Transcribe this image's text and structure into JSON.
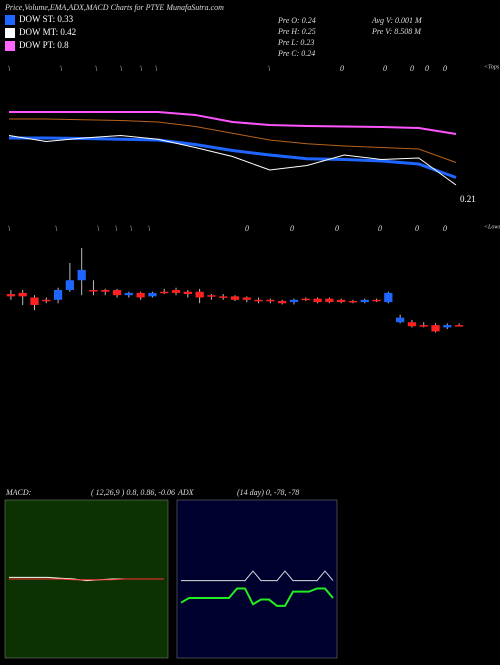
{
  "header": {
    "title": "Price,Volume,EMA,ADX,MACD Charts for PTYE MunafaSutra.com"
  },
  "legend": [
    {
      "label": "DOW ST: 0.33",
      "color": "#1e66ff"
    },
    {
      "label": "DOW MT: 0.42",
      "color": "#ffffff"
    },
    {
      "label": "DOW PT: 0.8",
      "color": "#ff66ff"
    }
  ],
  "info": {
    "col1": [
      "Pre O: 0.24",
      "Pre H: 0.25",
      "Pre L: 0.23",
      "Pre C: 0.24"
    ],
    "col2": [
      "Avg V: 0.001 M",
      "Pre V: 8.508 M"
    ]
  },
  "markers": {
    "tops": [
      "\\",
      "\\",
      "\\",
      "\\",
      "\\",
      "\\",
      "\\",
      "0",
      "0",
      "0",
      "0",
      "0"
    ],
    "tops_label": "<Tops",
    "lows": [
      "\\",
      "\\",
      "\\",
      "\\",
      "\\",
      "\\",
      "0",
      "0",
      "0",
      "0",
      "0",
      "0"
    ],
    "lows_label": "<Lows"
  },
  "chart_data": [
    {
      "type": "line",
      "categories": [
        null,
        null,
        null,
        null,
        null,
        null,
        null,
        null,
        null,
        null,
        null,
        null,
        null
      ],
      "ylim": [
        0.2,
        0.3
      ],
      "yticks": [
        0.21
      ],
      "series": [
        {
          "name": "PT",
          "color": "#ff55ff",
          "width": 2,
          "values": [
            0.2687,
            0.2687,
            0.2687,
            0.2687,
            0.2687,
            0.2667,
            0.262,
            0.26,
            0.2593,
            0.259,
            0.2587,
            0.258,
            0.254
          ]
        },
        {
          "name": "MT",
          "color": "#b8621b",
          "width": 1,
          "values": [
            0.264,
            0.264,
            0.2635,
            0.263,
            0.262,
            0.259,
            0.2545,
            0.25,
            0.2475,
            0.246,
            0.245,
            0.244,
            0.235
          ]
        },
        {
          "name": "ST",
          "color": "#1e66ff",
          "width": 3,
          "values": [
            0.2513,
            0.2513,
            0.251,
            0.2505,
            0.25,
            0.247,
            0.243,
            0.24,
            0.2375,
            0.237,
            0.236,
            0.234,
            0.225
          ]
        },
        {
          "name": "Price",
          "color": "#ffffff",
          "width": 1,
          "values": [
            0.253,
            0.249,
            0.2513,
            0.253,
            0.2505,
            0.245,
            0.239,
            0.23,
            0.233,
            0.24,
            0.237,
            0.238,
            0.22
          ]
        }
      ]
    },
    {
      "type": "candlestick",
      "categories": [
        null,
        null,
        null,
        null,
        null,
        null,
        null,
        null,
        null,
        null,
        null,
        null,
        null,
        null,
        null,
        null,
        null,
        null,
        null,
        null,
        null,
        null,
        null,
        null,
        null,
        null,
        null,
        null,
        null,
        null,
        null,
        null,
        null,
        null,
        null,
        null,
        null,
        null,
        null
      ],
      "ylim": [
        0.22,
        0.26
      ],
      "up_color": "#1e66ff",
      "down_color": "#ff2020",
      "open": [
        0.2506,
        0.2508,
        0.25,
        0.2496,
        0.2496,
        0.2513,
        0.253,
        0.2513,
        0.2513,
        0.2513,
        0.2504,
        0.2508,
        0.2502,
        0.251,
        0.2513,
        0.251,
        0.251,
        0.2504,
        0.2502,
        0.2502,
        0.25,
        0.2496,
        0.2496,
        0.2494,
        0.2492,
        0.2498,
        0.2498,
        0.2498,
        0.2496,
        0.2494,
        0.2492,
        0.2496,
        0.2492,
        0.2457,
        0.2457,
        0.2452,
        0.2452,
        0.2448,
        0.2452
      ],
      "high": [
        0.2513,
        0.2513,
        0.2504,
        0.25,
        0.2517,
        0.256,
        0.2586,
        0.253,
        0.2515,
        0.2515,
        0.251,
        0.251,
        0.251,
        0.2515,
        0.2517,
        0.2513,
        0.2515,
        0.2506,
        0.2506,
        0.2504,
        0.2502,
        0.25,
        0.2498,
        0.2496,
        0.2498,
        0.25,
        0.25,
        0.25,
        0.2498,
        0.2496,
        0.2498,
        0.2498,
        0.251,
        0.247,
        0.2461,
        0.2457,
        0.2455,
        0.2455,
        0.2455
      ],
      "low": [
        0.2496,
        0.2487,
        0.2478,
        0.249,
        0.249,
        0.251,
        0.2504,
        0.2504,
        0.2504,
        0.25,
        0.25,
        0.2496,
        0.25,
        0.2506,
        0.2504,
        0.25,
        0.249,
        0.2496,
        0.2496,
        0.2494,
        0.2492,
        0.249,
        0.249,
        0.2488,
        0.2488,
        0.2494,
        0.249,
        0.249,
        0.249,
        0.249,
        0.249,
        0.2492,
        0.249,
        0.2455,
        0.2448,
        0.2448,
        0.2439,
        0.2445,
        0.245
      ],
      "close": [
        0.2502,
        0.2502,
        0.2487,
        0.2496,
        0.2513,
        0.253,
        0.2548,
        0.2513,
        0.251,
        0.2504,
        0.2508,
        0.25,
        0.2508,
        0.251,
        0.2508,
        0.2506,
        0.25,
        0.2502,
        0.25,
        0.2496,
        0.2496,
        0.2494,
        0.2494,
        0.249,
        0.2496,
        0.2498,
        0.2492,
        0.2492,
        0.2492,
        0.2494,
        0.2496,
        0.2496,
        0.2508,
        0.2465,
        0.245,
        0.2452,
        0.2441,
        0.2452,
        0.2452
      ]
    },
    {
      "type": "line",
      "title": "MACD:",
      "subtitle": "( 12,26,9 ) 0.8, 0.86, -0.06",
      "background": "#0b3200",
      "categories": [
        null,
        null,
        null,
        null,
        null,
        null,
        null,
        null,
        null,
        null,
        null,
        null,
        null
      ],
      "ylim": [
        -10,
        10
      ],
      "series": [
        {
          "name": "MACD",
          "color": "#ffffff",
          "width": 1,
          "values": [
            0.2,
            0.2,
            0.2,
            0.2,
            0.1,
            0,
            -0.2,
            -0.1,
            0,
            0,
            0,
            0,
            0
          ]
        },
        {
          "name": "Signal",
          "color": "#ff3030",
          "width": 1,
          "values": [
            0,
            0,
            0,
            0,
            0,
            -0.1,
            -0.1,
            -0.1,
            -0.1,
            0,
            0,
            0,
            0
          ]
        }
      ]
    },
    {
      "type": "line",
      "title": "ADX",
      "subtitle": "(14 day) 0, -78, -78",
      "background": "#00002e",
      "categories": [
        null,
        null,
        null,
        null,
        null,
        null,
        null,
        null,
        null,
        null,
        null,
        null,
        null,
        null,
        null,
        null,
        null,
        null,
        null,
        null
      ],
      "ylim": [
        0,
        100
      ],
      "series": [
        {
          "name": "ADX",
          "color": "#dddddd",
          "width": 1,
          "values": [
            49,
            49,
            49,
            49,
            49,
            49,
            49,
            49,
            49,
            55,
            49,
            49,
            49,
            55,
            49,
            49,
            49,
            49,
            55,
            49
          ]
        },
        {
          "name": "DI",
          "color": "#22ee22",
          "width": 2,
          "values": [
            35,
            38,
            38,
            38,
            38,
            38,
            38,
            44,
            44,
            34,
            37,
            37,
            33,
            33,
            42,
            42,
            42,
            44,
            44,
            38
          ]
        }
      ]
    }
  ]
}
